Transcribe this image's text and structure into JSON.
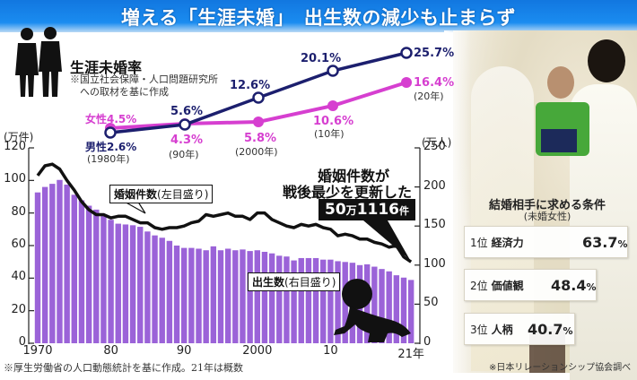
{
  "header": {
    "title": "増える「生涯未婚」　出生数の減少も止まらず"
  },
  "rate_panel": {
    "title": "生涯未婚率",
    "note_line1": "※国立社会保障・人口問題研究所",
    "note_line2": "への取材を基に作成",
    "labels": {
      "male_1980": "男性2.6%",
      "year_1980": "(1980年)",
      "female_1980": "女性4.5%",
      "male_1990": "5.6%",
      "female_1990": "4.3%",
      "year_1990": "(90年)",
      "male_2000": "12.6%",
      "female_2000": "5.8%",
      "year_2000": "(2000年)",
      "male_2010": "20.1%",
      "female_2010": "10.6%",
      "year_2010": "(10年)",
      "male_2020": "25.7%",
      "female_2020": "16.4%",
      "year_2020": "(20年)"
    }
  },
  "main_chart": {
    "left_unit": "(万件)",
    "right_unit": "(万人)",
    "marriage_label": "婚姻件数",
    "marriage_label_sub": "(左目盛り)",
    "births_label": "出生数",
    "births_label_sub": "(右目盛り)",
    "callout_line1": "婚姻件数が",
    "callout_line2": "戦後最少を更新した",
    "callout_value_a": "50",
    "callout_value_b": "万",
    "callout_value_c": "1116",
    "callout_value_d": "件",
    "x_ticks": [
      "1970",
      "80",
      "90",
      "2000",
      "10",
      "21年"
    ],
    "left_ticks": [
      "120",
      "100",
      "80",
      "60",
      "40",
      "20",
      "0"
    ],
    "right_ticks": [
      "250",
      "200",
      "150",
      "100",
      "50",
      "0"
    ],
    "source": "※厚生労働省の人口動態統計を基に作成。21年は概数"
  },
  "conditions": {
    "title": "結婚相手に求める条件",
    "subtitle": "(未婚女性)",
    "items": [
      {
        "rank": "1位",
        "item": "経済力",
        "pct": "63.7",
        "unit": "%"
      },
      {
        "rank": "2位",
        "item": "価値観",
        "pct": "48.4",
        "unit": "%"
      },
      {
        "rank": "3位",
        "item": "人柄",
        "pct": "40.7",
        "unit": "%"
      }
    ],
    "source": "※日本リレーションシップ協会調べ"
  },
  "colors": {
    "male": "#1c1f6e",
    "female": "#d63fd0",
    "bars": "#9b63d8",
    "banner": "#1a82ea"
  },
  "chart_data": [
    {
      "type": "line",
      "title": "生涯未婚率",
      "categories": [
        "1980",
        "1990",
        "2000",
        "2010",
        "2020"
      ],
      "series": [
        {
          "name": "男性",
          "values": [
            2.6,
            5.6,
            12.6,
            20.1,
            25.7
          ]
        },
        {
          "name": "女性",
          "values": [
            4.5,
            4.3,
            5.8,
            10.6,
            16.4
          ]
        }
      ],
      "ylabel": "%"
    },
    {
      "type": "bar+line",
      "title": "婚姻件数と出生数",
      "x": [
        1970,
        1971,
        1972,
        1973,
        1974,
        1975,
        1976,
        1977,
        1978,
        1979,
        1980,
        1981,
        1982,
        1983,
        1984,
        1985,
        1986,
        1987,
        1988,
        1989,
        1990,
        1991,
        1992,
        1993,
        1994,
        1995,
        1996,
        1997,
        1998,
        1999,
        2000,
        2001,
        2002,
        2003,
        2004,
        2005,
        2006,
        2007,
        2008,
        2009,
        2010,
        2011,
        2012,
        2013,
        2014,
        2015,
        2016,
        2017,
        2018,
        2019,
        2020,
        2021
      ],
      "series": [
        {
          "name": "出生数（右目盛り）",
          "type": "bar",
          "axis": "right",
          "unit": "万人",
          "values": [
            193,
            200,
            204,
            209,
            203,
            190,
            183,
            176,
            171,
            164,
            158,
            153,
            152,
            151,
            149,
            143,
            138,
            135,
            131,
            125,
            122,
            122,
            121,
            119,
            124,
            119,
            121,
            119,
            120,
            118,
            119,
            117,
            115,
            112,
            111,
            106,
            109,
            109,
            109,
            107,
            107,
            105,
            104,
            103,
            100,
            101,
            98,
            95,
            92,
            87,
            84,
            81
          ]
        },
        {
          "name": "婚姻件数（左目盛り）",
          "type": "line",
          "axis": "left",
          "unit": "万件",
          "values": [
            103,
            109,
            110,
            107,
            100,
            94,
            87,
            82,
            79,
            79,
            77,
            78,
            78,
            76,
            74,
            74,
            71,
            70,
            71,
            71,
            72,
            74,
            75,
            79,
            78,
            79,
            80,
            78,
            78,
            76,
            80,
            80,
            76,
            74,
            72,
            71,
            73,
            72,
            73,
            71,
            70,
            66,
            67,
            66,
            64,
            64,
            62,
            61,
            59,
            60,
            53,
            50
          ]
        }
      ],
      "left_axis": {
        "label": "(万件)",
        "range": [
          0,
          120
        ]
      },
      "right_axis": {
        "label": "(万人)",
        "range": [
          0,
          250
        ]
      },
      "annotation": "婚姻件数が戦後最少を更新した 50万1116件"
    },
    {
      "type": "table",
      "title": "結婚相手に求める条件（未婚女性）",
      "categories": [
        "経済力",
        "価値観",
        "人柄"
      ],
      "values": [
        63.7,
        48.4,
        40.7
      ]
    }
  ]
}
